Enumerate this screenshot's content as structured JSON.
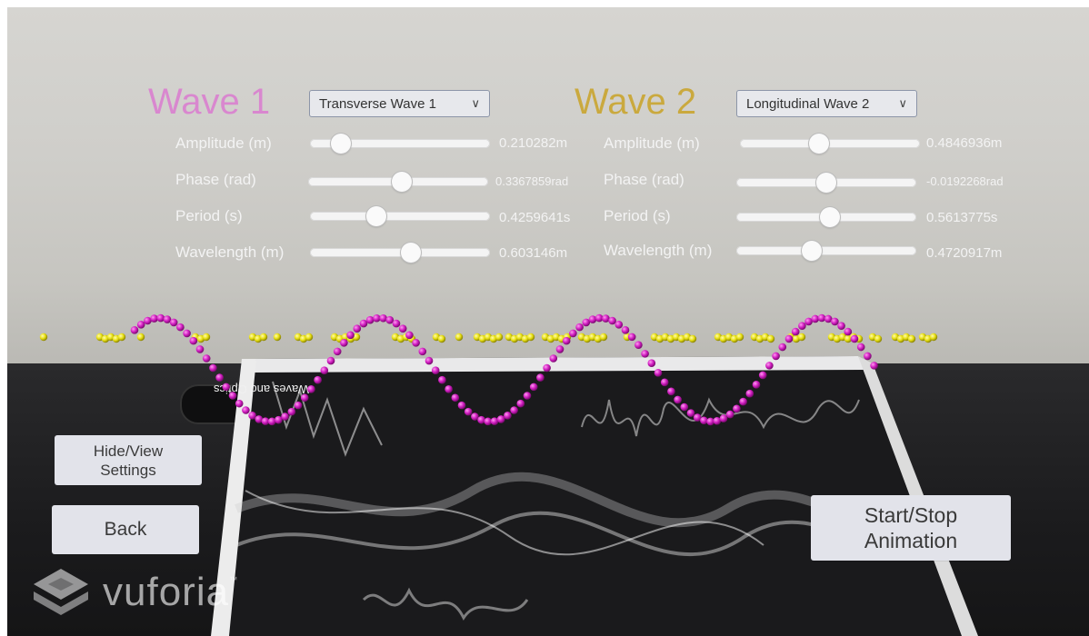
{
  "wave1": {
    "title": "Wave 1",
    "type_selected": "Transverse Wave 1",
    "color": "#d987cf",
    "params": [
      {
        "label": "Amplitude (m)",
        "value": "0.210282m",
        "fraction": 0.17
      },
      {
        "label": "Phase (rad)",
        "value": "0.3367859rad",
        "fraction": 0.52
      },
      {
        "label": "Period (s)",
        "value": "0.4259641s",
        "fraction": 0.37
      },
      {
        "label": "Wavelength (m)",
        "value": "0.603146m",
        "fraction": 0.56
      }
    ]
  },
  "wave2": {
    "title": "Wave 2",
    "type_selected": "Longitudinal Wave 2",
    "color": "#caa93e",
    "params": [
      {
        "label": "Amplitude (m)",
        "value": "0.4846936m",
        "fraction": 0.44
      },
      {
        "label": "Phase (rad)",
        "value": "-0.0192268rad",
        "fraction": 0.5
      },
      {
        "label": "Period (s)",
        "value": "0.5613775s",
        "fraction": 0.52
      },
      {
        "label": "Wavelength (m)",
        "value": "0.4720917m",
        "fraction": 0.42
      }
    ]
  },
  "buttons": {
    "hide_view": "Hide/View Settings",
    "back": "Back",
    "start_stop": "Start/Stop Animation"
  },
  "poster": {
    "title_mirrored": "Waves and Optics"
  },
  "watermark": {
    "brand": "vuforia",
    "tm": "™"
  },
  "particle_colors": {
    "transverse": "#d21fc2",
    "longitudinal": "#e7df12"
  }
}
